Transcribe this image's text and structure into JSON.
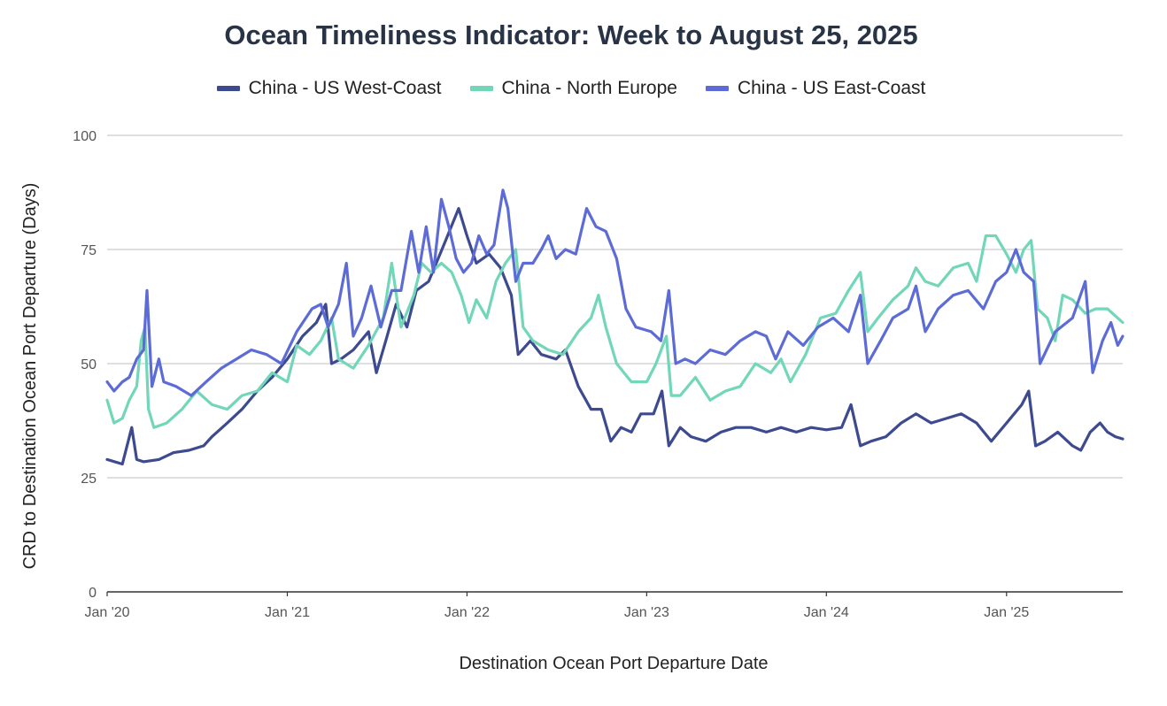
{
  "chart_data": {
    "type": "line",
    "title": "Ocean Timeliness Indicator: Week to August 25, 2025",
    "xlabel": "Destination Ocean Port Departure Date",
    "ylabel": "CRD to Destination Ocean Port Departure (Days)",
    "xlim": [
      "2020-01-01",
      "2025-08-25"
    ],
    "ylim": [
      0,
      100
    ],
    "yticks": [
      "0",
      "25",
      "50",
      "75",
      "100"
    ],
    "xticks": [
      {
        "date": "2020-01-01",
        "label": "Jan '20"
      },
      {
        "date": "2021-01-01",
        "label": "Jan '21"
      },
      {
        "date": "2022-01-01",
        "label": "Jan '22"
      },
      {
        "date": "2023-01-01",
        "label": "Jan '23"
      },
      {
        "date": "2024-01-01",
        "label": "Jan '24"
      },
      {
        "date": "2025-01-01",
        "label": "Jan '25"
      }
    ],
    "grid": true,
    "legend_position": "top",
    "series": [
      {
        "name": "China - US West-Coast",
        "color": "#3d4a8f",
        "points": [
          [
            "2020-01-01",
            29
          ],
          [
            "2020-02-01",
            28
          ],
          [
            "2020-02-20",
            36
          ],
          [
            "2020-03-01",
            29
          ],
          [
            "2020-03-15",
            28.5
          ],
          [
            "2020-04-15",
            29
          ],
          [
            "2020-05-15",
            30.5
          ],
          [
            "2020-06-15",
            31
          ],
          [
            "2020-07-15",
            32
          ],
          [
            "2020-08-01",
            34
          ],
          [
            "2020-09-01",
            37
          ],
          [
            "2020-10-01",
            40
          ],
          [
            "2020-11-01",
            44
          ],
          [
            "2020-12-01",
            47
          ],
          [
            "2021-01-01",
            51
          ],
          [
            "2021-02-01",
            56
          ],
          [
            "2021-03-01",
            59
          ],
          [
            "2021-03-20",
            63
          ],
          [
            "2021-04-01",
            50
          ],
          [
            "2021-04-20",
            51
          ],
          [
            "2021-05-15",
            53
          ],
          [
            "2021-06-15",
            57
          ],
          [
            "2021-07-01",
            48
          ],
          [
            "2021-07-20",
            55
          ],
          [
            "2021-08-10",
            63
          ],
          [
            "2021-09-01",
            58
          ],
          [
            "2021-09-20",
            66
          ],
          [
            "2021-10-15",
            68
          ],
          [
            "2021-11-15",
            76
          ],
          [
            "2021-12-15",
            84
          ],
          [
            "2022-01-01",
            78
          ],
          [
            "2022-01-20",
            72
          ],
          [
            "2022-02-15",
            74
          ],
          [
            "2022-03-10",
            71
          ],
          [
            "2022-04-01",
            65
          ],
          [
            "2022-04-15",
            52
          ],
          [
            "2022-05-10",
            55
          ],
          [
            "2022-06-01",
            52
          ],
          [
            "2022-07-01",
            51
          ],
          [
            "2022-07-20",
            53
          ],
          [
            "2022-08-15",
            45
          ],
          [
            "2022-09-10",
            40
          ],
          [
            "2022-10-01",
            40
          ],
          [
            "2022-10-20",
            33
          ],
          [
            "2022-11-10",
            36
          ],
          [
            "2022-12-01",
            35
          ],
          [
            "2022-12-20",
            39
          ],
          [
            "2023-01-15",
            39
          ],
          [
            "2023-02-01",
            44
          ],
          [
            "2023-02-15",
            32
          ],
          [
            "2023-03-10",
            36
          ],
          [
            "2023-04-01",
            34
          ],
          [
            "2023-05-01",
            33
          ],
          [
            "2023-06-01",
            35
          ],
          [
            "2023-07-01",
            36
          ],
          [
            "2023-08-01",
            36
          ],
          [
            "2023-09-01",
            35
          ],
          [
            "2023-10-01",
            36
          ],
          [
            "2023-11-01",
            35
          ],
          [
            "2023-12-01",
            36
          ],
          [
            "2024-01-01",
            35.5
          ],
          [
            "2024-02-01",
            36
          ],
          [
            "2024-02-20",
            41
          ],
          [
            "2024-03-10",
            32
          ],
          [
            "2024-04-01",
            33
          ],
          [
            "2024-05-01",
            34
          ],
          [
            "2024-06-01",
            37
          ],
          [
            "2024-07-01",
            39
          ],
          [
            "2024-08-01",
            37
          ],
          [
            "2024-09-01",
            38
          ],
          [
            "2024-10-01",
            39
          ],
          [
            "2024-11-01",
            37
          ],
          [
            "2024-12-01",
            33
          ],
          [
            "2025-01-01",
            37
          ],
          [
            "2025-02-01",
            41
          ],
          [
            "2025-02-15",
            44
          ],
          [
            "2025-03-01",
            32
          ],
          [
            "2025-03-20",
            33
          ],
          [
            "2025-04-15",
            35
          ],
          [
            "2025-05-15",
            32
          ],
          [
            "2025-06-01",
            31
          ],
          [
            "2025-06-20",
            35
          ],
          [
            "2025-07-10",
            37
          ],
          [
            "2025-07-25",
            35
          ],
          [
            "2025-08-10",
            34
          ],
          [
            "2025-08-25",
            33.5
          ]
        ]
      },
      {
        "name": "China - North Europe",
        "color": "#72d6b8",
        "points": [
          [
            "2020-01-01",
            42
          ],
          [
            "2020-01-15",
            37
          ],
          [
            "2020-02-01",
            38
          ],
          [
            "2020-02-15",
            42
          ],
          [
            "2020-03-01",
            45
          ],
          [
            "2020-03-10",
            55
          ],
          [
            "2020-03-18",
            58
          ],
          [
            "2020-03-25",
            40
          ],
          [
            "2020-04-05",
            36
          ],
          [
            "2020-05-01",
            37
          ],
          [
            "2020-06-01",
            40
          ],
          [
            "2020-07-01",
            44
          ],
          [
            "2020-08-01",
            41
          ],
          [
            "2020-09-01",
            40
          ],
          [
            "2020-10-01",
            43
          ],
          [
            "2020-11-01",
            44
          ],
          [
            "2020-12-01",
            48
          ],
          [
            "2021-01-01",
            46
          ],
          [
            "2021-01-20",
            54
          ],
          [
            "2021-02-15",
            52
          ],
          [
            "2021-03-10",
            55
          ],
          [
            "2021-04-01",
            60
          ],
          [
            "2021-04-15",
            51
          ],
          [
            "2021-05-15",
            49
          ],
          [
            "2021-06-15",
            54
          ],
          [
            "2021-07-15",
            60
          ],
          [
            "2021-08-01",
            72
          ],
          [
            "2021-08-20",
            58
          ],
          [
            "2021-09-15",
            65
          ],
          [
            "2021-10-01",
            72
          ],
          [
            "2021-10-20",
            70
          ],
          [
            "2021-11-10",
            72
          ],
          [
            "2021-12-01",
            70
          ],
          [
            "2021-12-20",
            65
          ],
          [
            "2022-01-05",
            59
          ],
          [
            "2022-01-20",
            64
          ],
          [
            "2022-02-10",
            60
          ],
          [
            "2022-03-01",
            68
          ],
          [
            "2022-03-20",
            72
          ],
          [
            "2022-04-10",
            75
          ],
          [
            "2022-04-25",
            58
          ],
          [
            "2022-05-15",
            55
          ],
          [
            "2022-06-15",
            53
          ],
          [
            "2022-07-15",
            52
          ],
          [
            "2022-08-15",
            57
          ],
          [
            "2022-09-10",
            60
          ],
          [
            "2022-09-25",
            65
          ],
          [
            "2022-10-10",
            58
          ],
          [
            "2022-11-01",
            50
          ],
          [
            "2022-12-01",
            46
          ],
          [
            "2023-01-01",
            46
          ],
          [
            "2023-01-20",
            50
          ],
          [
            "2023-02-10",
            56
          ],
          [
            "2023-02-20",
            43
          ],
          [
            "2023-03-10",
            43
          ],
          [
            "2023-04-10",
            47
          ],
          [
            "2023-05-10",
            42
          ],
          [
            "2023-06-10",
            44
          ],
          [
            "2023-07-10",
            45
          ],
          [
            "2023-08-10",
            50
          ],
          [
            "2023-09-10",
            48
          ],
          [
            "2023-10-01",
            51
          ],
          [
            "2023-10-20",
            46
          ],
          [
            "2023-11-20",
            52
          ],
          [
            "2023-12-20",
            60
          ],
          [
            "2024-01-20",
            61
          ],
          [
            "2024-02-15",
            66
          ],
          [
            "2024-03-10",
            70
          ],
          [
            "2024-03-25",
            57
          ],
          [
            "2024-04-15",
            60
          ],
          [
            "2024-05-15",
            64
          ],
          [
            "2024-06-15",
            67
          ],
          [
            "2024-07-01",
            71
          ],
          [
            "2024-07-20",
            68
          ],
          [
            "2024-08-15",
            67
          ],
          [
            "2024-09-15",
            71
          ],
          [
            "2024-10-15",
            72
          ],
          [
            "2024-11-01",
            68
          ],
          [
            "2024-11-20",
            78
          ],
          [
            "2024-12-10",
            78
          ],
          [
            "2025-01-01",
            74
          ],
          [
            "2025-01-20",
            70
          ],
          [
            "2025-02-05",
            75
          ],
          [
            "2025-02-20",
            77
          ],
          [
            "2025-03-05",
            62
          ],
          [
            "2025-03-25",
            60
          ],
          [
            "2025-04-10",
            55
          ],
          [
            "2025-04-25",
            65
          ],
          [
            "2025-05-15",
            64
          ],
          [
            "2025-06-10",
            61
          ],
          [
            "2025-07-01",
            62
          ],
          [
            "2025-07-25",
            62
          ],
          [
            "2025-08-25",
            59
          ]
        ]
      },
      {
        "name": "China - US East-Coast",
        "color": "#5d6bd6",
        "points": [
          [
            "2020-01-01",
            46
          ],
          [
            "2020-01-15",
            44
          ],
          [
            "2020-02-01",
            46
          ],
          [
            "2020-02-15",
            47
          ],
          [
            "2020-03-01",
            51
          ],
          [
            "2020-03-15",
            53
          ],
          [
            "2020-03-22",
            66
          ],
          [
            "2020-04-01",
            45
          ],
          [
            "2020-04-15",
            51
          ],
          [
            "2020-04-25",
            46
          ],
          [
            "2020-05-20",
            45
          ],
          [
            "2020-06-20",
            43
          ],
          [
            "2020-07-20",
            46
          ],
          [
            "2020-08-20",
            49
          ],
          [
            "2020-09-20",
            51
          ],
          [
            "2020-10-20",
            53
          ],
          [
            "2020-11-20",
            52
          ],
          [
            "2020-12-20",
            50
          ],
          [
            "2021-01-20",
            57
          ],
          [
            "2021-02-20",
            62
          ],
          [
            "2021-03-10",
            63
          ],
          [
            "2021-03-25",
            58
          ],
          [
            "2021-04-15",
            63
          ],
          [
            "2021-05-01",
            72
          ],
          [
            "2021-05-15",
            56
          ],
          [
            "2021-06-01",
            60
          ],
          [
            "2021-06-20",
            67
          ],
          [
            "2021-07-10",
            58
          ],
          [
            "2021-08-01",
            66
          ],
          [
            "2021-08-20",
            66
          ],
          [
            "2021-09-10",
            79
          ],
          [
            "2021-09-25",
            70
          ],
          [
            "2021-10-10",
            80
          ],
          [
            "2021-10-25",
            70
          ],
          [
            "2021-11-10",
            86
          ],
          [
            "2021-11-25",
            80
          ],
          [
            "2021-12-10",
            73
          ],
          [
            "2021-12-25",
            70
          ],
          [
            "2022-01-10",
            72
          ],
          [
            "2022-01-25",
            78
          ],
          [
            "2022-02-10",
            74
          ],
          [
            "2022-02-25",
            76
          ],
          [
            "2022-03-15",
            88
          ],
          [
            "2022-03-25",
            84
          ],
          [
            "2022-04-10",
            68
          ],
          [
            "2022-04-25",
            72
          ],
          [
            "2022-05-15",
            72
          ],
          [
            "2022-06-01",
            75
          ],
          [
            "2022-06-15",
            78
          ],
          [
            "2022-07-01",
            73
          ],
          [
            "2022-07-20",
            75
          ],
          [
            "2022-08-10",
            74
          ],
          [
            "2022-09-01",
            84
          ],
          [
            "2022-09-20",
            80
          ],
          [
            "2022-10-10",
            79
          ],
          [
            "2022-11-01",
            73
          ],
          [
            "2022-11-20",
            62
          ],
          [
            "2022-12-10",
            58
          ],
          [
            "2023-01-10",
            57
          ],
          [
            "2023-01-30",
            55
          ],
          [
            "2023-02-15",
            66
          ],
          [
            "2023-03-01",
            50
          ],
          [
            "2023-03-20",
            51
          ],
          [
            "2023-04-10",
            50
          ],
          [
            "2023-05-10",
            53
          ],
          [
            "2023-06-10",
            52
          ],
          [
            "2023-07-10",
            55
          ],
          [
            "2023-08-10",
            57
          ],
          [
            "2023-09-01",
            56
          ],
          [
            "2023-09-20",
            51
          ],
          [
            "2023-10-15",
            57
          ],
          [
            "2023-11-15",
            54
          ],
          [
            "2023-12-15",
            58
          ],
          [
            "2024-01-15",
            60
          ],
          [
            "2024-02-15",
            57
          ],
          [
            "2024-03-10",
            65
          ],
          [
            "2024-03-25",
            50
          ],
          [
            "2024-04-20",
            55
          ],
          [
            "2024-05-15",
            60
          ],
          [
            "2024-06-15",
            62
          ],
          [
            "2024-07-01",
            67
          ],
          [
            "2024-07-20",
            57
          ],
          [
            "2024-08-15",
            62
          ],
          [
            "2024-09-15",
            65
          ],
          [
            "2024-10-15",
            66
          ],
          [
            "2024-11-15",
            62
          ],
          [
            "2024-12-10",
            68
          ],
          [
            "2025-01-01",
            70
          ],
          [
            "2025-01-20",
            75
          ],
          [
            "2025-02-05",
            70
          ],
          [
            "2025-02-25",
            68
          ],
          [
            "2025-03-10",
            50
          ],
          [
            "2025-04-10",
            57
          ],
          [
            "2025-05-15",
            60
          ],
          [
            "2025-06-10",
            68
          ],
          [
            "2025-06-25",
            48
          ],
          [
            "2025-07-15",
            55
          ],
          [
            "2025-08-01",
            59
          ],
          [
            "2025-08-15",
            54
          ],
          [
            "2025-08-25",
            56
          ]
        ]
      }
    ]
  }
}
